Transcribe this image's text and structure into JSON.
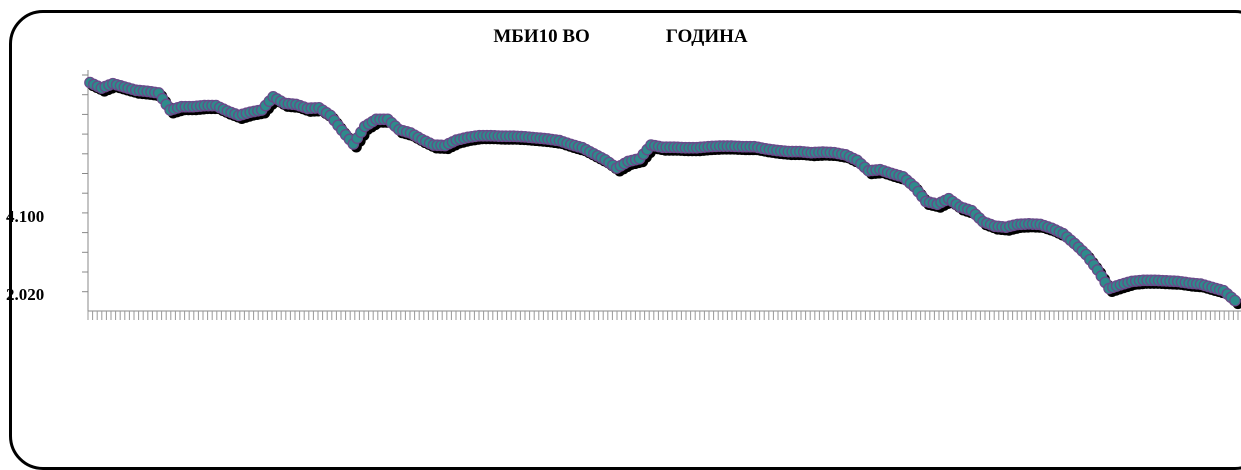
{
  "chart_data": {
    "type": "scatter",
    "title_parts": [
      "МБИ10 ВО",
      "ГОДИНА"
    ],
    "xlabel": "",
    "ylabel": "",
    "y_tick_labels": [
      "4.100",
      "2.020"
    ],
    "ylim": [
      1850,
      6250
    ],
    "grid": false,
    "legend": "none",
    "marker_color": "#2e8b8b",
    "marker_outline": "#6a4a8a",
    "shadow_color": "#000000",
    "x": [
      0,
      3,
      6,
      9,
      12,
      15,
      18,
      21,
      24,
      27,
      30,
      33,
      36,
      39,
      42,
      45,
      48,
      51,
      54,
      57,
      60,
      63,
      66,
      69,
      72,
      75,
      78,
      81,
      84,
      87,
      90,
      93,
      96,
      99,
      102,
      105,
      108,
      111,
      114,
      117,
      120,
      123,
      126,
      129,
      132,
      135,
      138,
      141,
      144,
      147,
      150,
      153,
      156,
      159,
      162,
      165,
      168,
      171,
      174,
      177,
      180,
      183,
      186,
      189,
      192,
      195,
      198,
      201,
      204,
      207,
      210,
      213,
      216,
      219,
      222,
      225,
      228,
      231,
      234,
      237,
      240,
      243,
      246,
      249,
      252,
      255,
      258,
      261,
      264,
      267,
      270,
      273,
      276,
      279,
      282,
      285,
      288,
      291,
      294,
      297,
      300
    ],
    "values": [
      6020,
      5920,
      6000,
      5940,
      5880,
      5860,
      5830,
      5520,
      5580,
      5580,
      5600,
      5600,
      5500,
      5420,
      5480,
      5520,
      5760,
      5640,
      5620,
      5550,
      5560,
      5420,
      5150,
      4900,
      5220,
      5350,
      5350,
      5160,
      5100,
      4980,
      4880,
      4870,
      4970,
      5020,
      5050,
      5050,
      5040,
      5040,
      5030,
      5010,
      4990,
      4960,
      4890,
      4830,
      4720,
      4610,
      4460,
      4580,
      4630,
      4880,
      4840,
      4840,
      4830,
      4830,
      4850,
      4860,
      4860,
      4850,
      4850,
      4810,
      4780,
      4760,
      4760,
      4740,
      4750,
      4740,
      4700,
      4600,
      4410,
      4430,
      4360,
      4300,
      4120,
      3850,
      3800,
      3900,
      3750,
      3680,
      3480,
      3400,
      3380,
      3430,
      3440,
      3430,
      3360,
      3260,
      3080,
      2880,
      2600,
      2260,
      2330,
      2390,
      2410,
      2410,
      2400,
      2390,
      2360,
      2340,
      2280,
      2220,
      2040
    ]
  }
}
